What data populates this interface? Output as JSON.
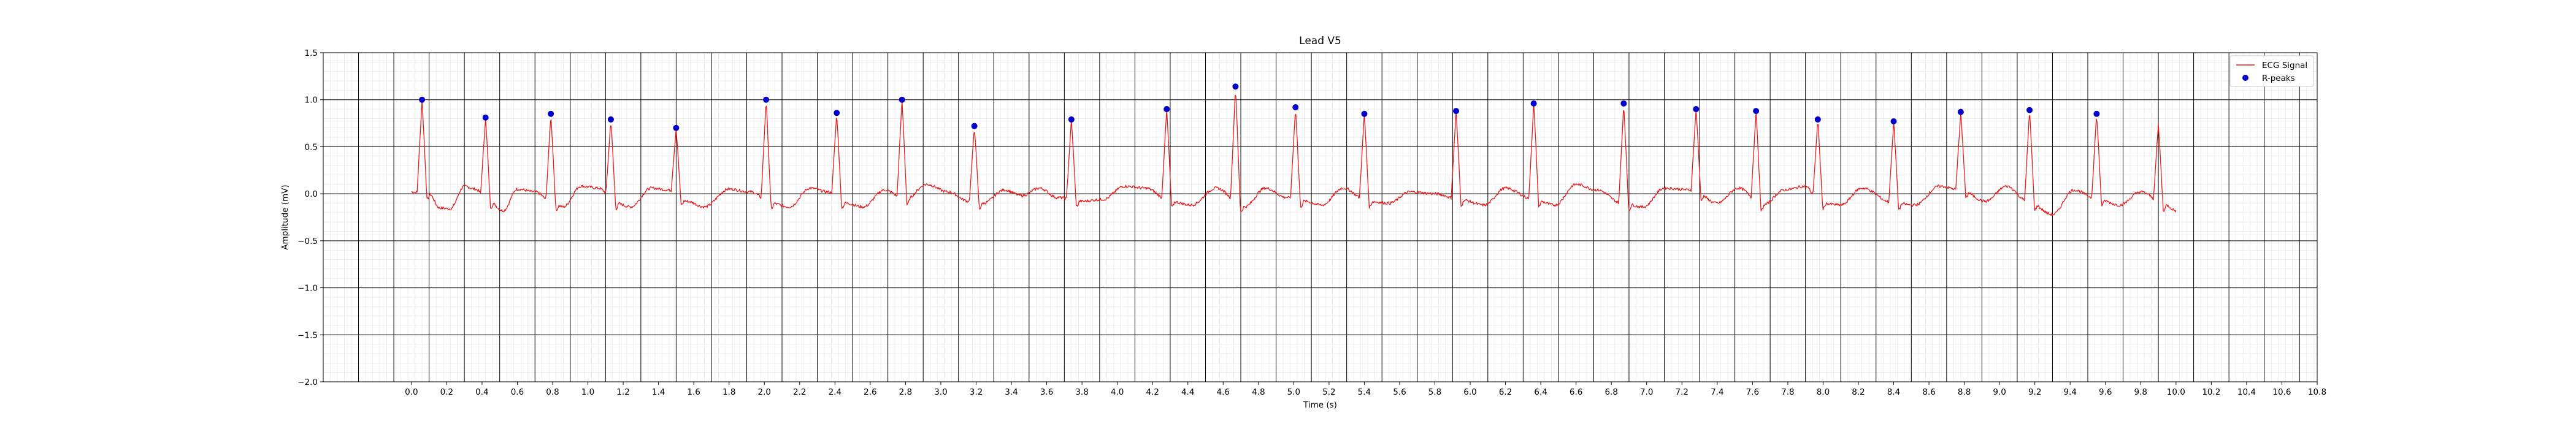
{
  "chart_data": {
    "type": "line",
    "title": "Lead V5",
    "xlabel": "Time (s)",
    "ylabel": "Amplitude (mV)",
    "xlim": [
      -0.5,
      10.8
    ],
    "ylim": [
      -2.0,
      1.5
    ],
    "xticks": [
      "0.0",
      "0.2",
      "0.4",
      "0.6",
      "0.8",
      "1.0",
      "1.2",
      "1.4",
      "1.6",
      "1.8",
      "2.0",
      "2.2",
      "2.4",
      "2.6",
      "2.8",
      "3.0",
      "3.2",
      "3.4",
      "3.6",
      "3.8",
      "4.0",
      "4.2",
      "4.4",
      "4.6",
      "4.8",
      "5.0",
      "5.2",
      "5.4",
      "5.6",
      "5.8",
      "6.0",
      "6.2",
      "6.4",
      "6.6",
      "6.8",
      "7.0",
      "7.2",
      "7.4",
      "7.6",
      "7.8",
      "8.0",
      "8.2",
      "8.4",
      "8.6",
      "8.8",
      "9.0",
      "9.2",
      "9.4",
      "9.6",
      "9.8",
      "10.0",
      "10.2",
      "10.4",
      "10.6",
      "10.8"
    ],
    "yticks": [
      "−2.0",
      "−1.5",
      "−1.0",
      "−0.5",
      "0.0",
      "0.5",
      "1.0",
      "1.5"
    ],
    "grid": true,
    "legend_position": "top-right",
    "series": [
      {
        "name": "ECG Signal",
        "kind": "line",
        "color": "#e8191a",
        "x_range": [
          0.0,
          10.0
        ],
        "baseline": [
          [
            0.0,
            0.02
          ],
          [
            0.1,
            0.0
          ],
          [
            0.16,
            -0.15
          ],
          [
            0.22,
            -0.16
          ],
          [
            0.3,
            0.08
          ],
          [
            0.36,
            0.05
          ],
          [
            0.44,
            -0.08
          ],
          [
            0.52,
            -0.18
          ],
          [
            0.6,
            0.05
          ],
          [
            0.7,
            0.02
          ],
          [
            0.8,
            -0.1
          ],
          [
            0.86,
            -0.14
          ],
          [
            0.96,
            0.08
          ],
          [
            1.06,
            0.06
          ],
          [
            1.16,
            -0.1
          ],
          [
            1.24,
            -0.14
          ],
          [
            1.36,
            0.06
          ],
          [
            1.46,
            0.04
          ],
          [
            1.56,
            -0.08
          ],
          [
            1.66,
            -0.14
          ],
          [
            1.8,
            0.05
          ],
          [
            1.92,
            0.02
          ],
          [
            2.04,
            -0.1
          ],
          [
            2.14,
            -0.14
          ],
          [
            2.26,
            0.06
          ],
          [
            2.36,
            0.02
          ],
          [
            2.46,
            -0.1
          ],
          [
            2.56,
            -0.14
          ],
          [
            2.68,
            0.04
          ],
          [
            2.8,
            -0.06
          ],
          [
            2.92,
            0.1
          ],
          [
            3.04,
            0.02
          ],
          [
            3.16,
            -0.08
          ],
          [
            3.24,
            -0.1
          ],
          [
            3.36,
            0.04
          ],
          [
            3.46,
            -0.02
          ],
          [
            3.56,
            0.06
          ],
          [
            3.66,
            -0.04
          ],
          [
            3.8,
            -0.08
          ],
          [
            3.92,
            -0.06
          ],
          [
            4.04,
            0.08
          ],
          [
            4.16,
            0.06
          ],
          [
            4.3,
            -0.08
          ],
          [
            4.42,
            -0.12
          ],
          [
            4.56,
            0.06
          ],
          [
            4.72,
            -0.14
          ],
          [
            4.84,
            0.06
          ],
          [
            4.96,
            -0.04
          ],
          [
            5.06,
            -0.08
          ],
          [
            5.16,
            -0.12
          ],
          [
            5.28,
            0.06
          ],
          [
            5.42,
            -0.08
          ],
          [
            5.54,
            -0.1
          ],
          [
            5.66,
            0.02
          ],
          [
            5.8,
            0.0
          ],
          [
            5.94,
            -0.06
          ],
          [
            6.08,
            -0.12
          ],
          [
            6.2,
            0.06
          ],
          [
            6.36,
            -0.06
          ],
          [
            6.48,
            -0.12
          ],
          [
            6.6,
            0.1
          ],
          [
            6.72,
            0.04
          ],
          [
            6.86,
            -0.1
          ],
          [
            6.98,
            -0.14
          ],
          [
            7.1,
            0.06
          ],
          [
            7.26,
            0.04
          ],
          [
            7.4,
            -0.1
          ],
          [
            7.52,
            0.06
          ],
          [
            7.66,
            -0.12
          ],
          [
            7.78,
            0.04
          ],
          [
            7.9,
            0.08
          ],
          [
            7.98,
            -0.1
          ],
          [
            8.1,
            -0.12
          ],
          [
            8.22,
            0.06
          ],
          [
            8.4,
            -0.1
          ],
          [
            8.52,
            -0.12
          ],
          [
            8.66,
            0.08
          ],
          [
            8.78,
            0.04
          ],
          [
            8.92,
            -0.08
          ],
          [
            9.04,
            0.08
          ],
          [
            9.16,
            -0.08
          ],
          [
            9.3,
            -0.22
          ],
          [
            9.42,
            0.04
          ],
          [
            9.56,
            -0.06
          ],
          [
            9.68,
            -0.12
          ],
          [
            9.8,
            0.02
          ],
          [
            9.94,
            -0.12
          ],
          [
            10.0,
            -0.18
          ]
        ],
        "final_peak": [
          9.9,
          0.74
        ]
      },
      {
        "name": "R-peaks",
        "kind": "scatter",
        "color": "#0000cd",
        "points": [
          [
            0.06,
            1.0
          ],
          [
            0.42,
            0.81
          ],
          [
            0.79,
            0.85
          ],
          [
            1.13,
            0.79
          ],
          [
            1.5,
            0.7
          ],
          [
            2.01,
            1.0
          ],
          [
            2.41,
            0.86
          ],
          [
            2.78,
            1.0
          ],
          [
            3.19,
            0.72
          ],
          [
            3.74,
            0.79
          ],
          [
            4.28,
            0.9
          ],
          [
            4.67,
            1.14
          ],
          [
            5.01,
            0.92
          ],
          [
            5.4,
            0.85
          ],
          [
            5.92,
            0.88
          ],
          [
            6.36,
            0.96
          ],
          [
            6.87,
            0.96
          ],
          [
            7.28,
            0.9
          ],
          [
            7.62,
            0.88
          ],
          [
            7.97,
            0.79
          ],
          [
            8.4,
            0.77
          ],
          [
            8.78,
            0.87
          ],
          [
            9.17,
            0.89
          ],
          [
            9.55,
            0.85
          ]
        ]
      }
    ]
  }
}
